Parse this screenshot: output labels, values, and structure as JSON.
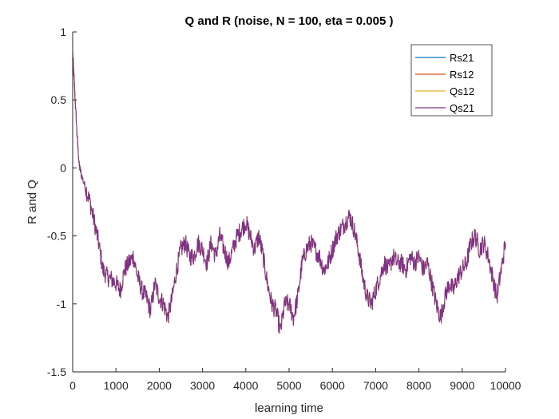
{
  "chart_data": {
    "type": "line",
    "title": "Q and R (noise, N = 100, eta = 0.005 )",
    "xlabel": "learning time",
    "ylabel": "R and Q",
    "xlim": [
      0,
      10000
    ],
    "ylim": [
      -1.5,
      1
    ],
    "xticks": [
      0,
      1000,
      2000,
      3000,
      4000,
      5000,
      6000,
      7000,
      8000,
      9000,
      10000
    ],
    "xtick_labels": [
      "0",
      "1000",
      "2000",
      "3000",
      "4000",
      "5000",
      "6000",
      "7000",
      "8000",
      "9000",
      "10000"
    ],
    "yticks": [
      -1.5,
      -1,
      -0.5,
      0,
      0.5,
      1
    ],
    "ytick_labels": [
      "-1.5",
      "-1",
      "-0.5",
      "0",
      "0.5",
      "1"
    ],
    "grid": false,
    "legend_position": "top-right",
    "series": [
      {
        "name": "Rs21",
        "color": "#0072BD",
        "visible_under_overlap": true
      },
      {
        "name": "Rs12",
        "color": "#D95319",
        "visible_under_overlap": true
      },
      {
        "name": "Qs12",
        "color": "#EDB120",
        "visible_under_overlap": true
      },
      {
        "name": "Qs21",
        "color": "#7E2F8E",
        "visible_under_overlap": false
      }
    ],
    "shared_x": [
      0,
      50,
      100,
      150,
      200,
      300,
      400,
      500,
      600,
      700,
      800,
      900,
      1000,
      1100,
      1200,
      1300,
      1400,
      1500,
      1600,
      1700,
      1800,
      1900,
      2000,
      2100,
      2200,
      2300,
      2400,
      2500,
      2600,
      2700,
      2800,
      2900,
      3000,
      3100,
      3200,
      3300,
      3400,
      3500,
      3600,
      3700,
      3800,
      3900,
      4000,
      4100,
      4200,
      4300,
      4400,
      4500,
      4600,
      4700,
      4800,
      4900,
      5000,
      5100,
      5200,
      5300,
      5400,
      5500,
      5600,
      5700,
      5800,
      5900,
      6000,
      6100,
      6200,
      6300,
      6400,
      6500,
      6600,
      6700,
      6800,
      6900,
      7000,
      7100,
      7200,
      7300,
      7400,
      7500,
      7600,
      7700,
      7800,
      7900,
      8000,
      8100,
      8200,
      8300,
      8400,
      8500,
      8600,
      8700,
      8800,
      8900,
      9000,
      9100,
      9200,
      9300,
      9400,
      9500,
      9600,
      9700,
      9800,
      9900,
      10000
    ],
    "shared_y": [
      0.85,
      0.55,
      0.25,
      0.02,
      -0.05,
      -0.15,
      -0.25,
      -0.4,
      -0.55,
      -0.75,
      -0.8,
      -0.82,
      -0.85,
      -0.9,
      -0.75,
      -0.7,
      -0.65,
      -0.8,
      -0.9,
      -0.95,
      -1.05,
      -0.85,
      -0.95,
      -1.0,
      -1.1,
      -0.95,
      -0.75,
      -0.6,
      -0.55,
      -0.65,
      -0.65,
      -0.55,
      -0.6,
      -0.7,
      -0.55,
      -0.65,
      -0.5,
      -0.6,
      -0.7,
      -0.6,
      -0.5,
      -0.45,
      -0.4,
      -0.5,
      -0.6,
      -0.5,
      -0.65,
      -0.85,
      -1.0,
      -1.05,
      -1.2,
      -1.0,
      -1.0,
      -1.1,
      -0.95,
      -0.7,
      -0.6,
      -0.55,
      -0.6,
      -0.65,
      -0.75,
      -0.7,
      -0.6,
      -0.5,
      -0.45,
      -0.4,
      -0.35,
      -0.45,
      -0.6,
      -0.8,
      -0.95,
      -1.0,
      -0.9,
      -0.8,
      -0.7,
      -0.75,
      -0.65,
      -0.7,
      -0.7,
      -0.75,
      -0.65,
      -0.7,
      -0.65,
      -0.75,
      -0.7,
      -0.85,
      -1.0,
      -1.1,
      -0.95,
      -0.85,
      -0.9,
      -0.8,
      -0.75,
      -0.7,
      -0.55,
      -0.5,
      -0.6,
      -0.55,
      -0.65,
      -0.8,
      -0.95,
      -0.75,
      -0.55
    ]
  }
}
